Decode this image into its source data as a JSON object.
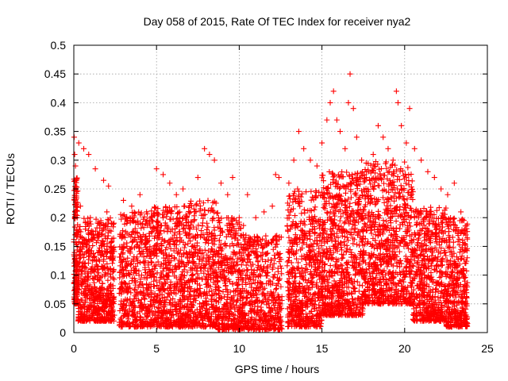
{
  "chart_data": {
    "type": "scatter",
    "title": "Day 058 of 2015, Rate Of TEC Index for receiver nya2",
    "xlabel": "GPS time / hours",
    "ylabel": "ROTI / TECUs",
    "xlim": [
      0,
      25
    ],
    "ylim": [
      0,
      0.5
    ],
    "x_ticks": [
      "0",
      "5",
      "10",
      "15",
      "20",
      "25"
    ],
    "y_ticks": [
      "0",
      "0.05",
      "0.1",
      "0.15",
      "0.2",
      "0.25",
      "0.3",
      "0.35",
      "0.4",
      "0.45",
      "0.5"
    ],
    "grid": true,
    "marker": "+",
    "color": "#ff0000",
    "series": [
      {
        "points": [
          [
            0.02,
            0.34
          ],
          [
            0.05,
            0.31
          ],
          [
            0.1,
            0.29
          ],
          [
            0.15,
            0.265
          ],
          [
            0.3,
            0.33
          ],
          [
            0.6,
            0.32
          ],
          [
            0.9,
            0.31
          ],
          [
            1.3,
            0.285
          ],
          [
            1.8,
            0.265
          ],
          [
            2.1,
            0.255
          ],
          [
            0.2,
            0.2
          ],
          [
            0.4,
            0.22
          ],
          [
            0.7,
            0.18
          ],
          [
            1.0,
            0.2
          ],
          [
            1.5,
            0.19
          ],
          [
            2.0,
            0.21
          ],
          [
            2.3,
            0.19
          ],
          [
            0.3,
            0.1
          ],
          [
            0.8,
            0.08
          ],
          [
            1.4,
            0.06
          ],
          [
            1.9,
            0.05
          ],
          [
            2.35,
            0.04
          ],
          [
            3.0,
            0.23
          ],
          [
            3.5,
            0.22
          ],
          [
            4.0,
            0.24
          ],
          [
            4.4,
            0.21
          ],
          [
            5.0,
            0.285
          ],
          [
            5.4,
            0.275
          ],
          [
            5.8,
            0.26
          ],
          [
            6.2,
            0.24
          ],
          [
            6.6,
            0.25
          ],
          [
            7.0,
            0.22
          ],
          [
            7.5,
            0.27
          ],
          [
            7.9,
            0.32
          ],
          [
            8.2,
            0.31
          ],
          [
            8.5,
            0.3
          ],
          [
            8.9,
            0.26
          ],
          [
            9.3,
            0.24
          ],
          [
            9.6,
            0.27
          ],
          [
            10.0,
            0.2
          ],
          [
            10.5,
            0.24
          ],
          [
            11.0,
            0.2
          ],
          [
            11.5,
            0.21
          ],
          [
            12.0,
            0.22
          ],
          [
            12.2,
            0.275
          ],
          [
            12.4,
            0.27
          ],
          [
            3.2,
            0.12
          ],
          [
            4.1,
            0.1
          ],
          [
            5.3,
            0.14
          ],
          [
            6.3,
            0.12
          ],
          [
            7.2,
            0.1
          ],
          [
            8.4,
            0.12
          ],
          [
            9.1,
            0.09
          ],
          [
            10.4,
            0.1
          ],
          [
            11.3,
            0.08
          ],
          [
            12.1,
            0.06
          ],
          [
            3.6,
            0.03
          ],
          [
            5.6,
            0.02
          ],
          [
            7.7,
            0.03
          ],
          [
            9.8,
            0.015
          ],
          [
            11.8,
            0.02
          ],
          [
            13.0,
            0.26
          ],
          [
            13.3,
            0.3
          ],
          [
            13.6,
            0.35
          ],
          [
            13.9,
            0.32
          ],
          [
            14.3,
            0.3
          ],
          [
            14.7,
            0.29
          ],
          [
            15.0,
            0.33
          ],
          [
            15.3,
            0.37
          ],
          [
            15.5,
            0.4
          ],
          [
            15.7,
            0.42
          ],
          [
            15.9,
            0.37
          ],
          [
            16.1,
            0.35
          ],
          [
            16.4,
            0.32
          ],
          [
            16.6,
            0.4
          ],
          [
            16.7,
            0.45
          ],
          [
            16.9,
            0.39
          ],
          [
            17.1,
            0.34
          ],
          [
            17.4,
            0.3
          ],
          [
            17.8,
            0.28
          ],
          [
            18.1,
            0.31
          ],
          [
            18.4,
            0.36
          ],
          [
            18.7,
            0.34
          ],
          [
            19.0,
            0.32
          ],
          [
            19.3,
            0.3
          ],
          [
            19.5,
            0.42
          ],
          [
            19.6,
            0.4
          ],
          [
            19.8,
            0.36
          ],
          [
            20.1,
            0.33
          ],
          [
            20.3,
            0.39
          ],
          [
            20.6,
            0.32
          ],
          [
            21.0,
            0.3
          ],
          [
            21.4,
            0.28
          ],
          [
            21.8,
            0.27
          ],
          [
            22.2,
            0.25
          ],
          [
            22.6,
            0.24
          ],
          [
            23.0,
            0.26
          ],
          [
            23.4,
            0.21
          ],
          [
            23.7,
            0.17
          ],
          [
            13.2,
            0.15
          ],
          [
            14.5,
            0.13
          ],
          [
            15.6,
            0.16
          ],
          [
            16.8,
            0.18
          ],
          [
            18.0,
            0.15
          ],
          [
            19.2,
            0.17
          ],
          [
            20.4,
            0.14
          ],
          [
            21.6,
            0.12
          ],
          [
            22.8,
            0.1
          ],
          [
            23.6,
            0.08
          ],
          [
            13.5,
            0.04
          ],
          [
            15.2,
            0.05
          ],
          [
            17.2,
            0.06
          ],
          [
            19.4,
            0.07
          ],
          [
            21.2,
            0.05
          ],
          [
            23.2,
            0.03
          ]
        ],
        "dense_bands": [
          {
            "x0": 0.0,
            "x1": 0.25,
            "ymin": 0.05,
            "ymax": 0.27,
            "n": 160
          },
          {
            "x0": 0.25,
            "x1": 2.45,
            "ymin": 0.02,
            "ymax": 0.2,
            "n": 650
          },
          {
            "x0": 2.75,
            "x1": 4.5,
            "ymin": 0.01,
            "ymax": 0.21,
            "n": 420
          },
          {
            "x0": 4.5,
            "x1": 6.5,
            "ymin": 0.01,
            "ymax": 0.22,
            "n": 520
          },
          {
            "x0": 6.5,
            "x1": 8.7,
            "ymin": 0.01,
            "ymax": 0.23,
            "n": 560
          },
          {
            "x0": 8.7,
            "x1": 10.3,
            "ymin": 0.005,
            "ymax": 0.2,
            "n": 420
          },
          {
            "x0": 10.3,
            "x1": 12.6,
            "ymin": 0.005,
            "ymax": 0.17,
            "n": 480
          },
          {
            "x0": 12.9,
            "x1": 15.0,
            "ymin": 0.01,
            "ymax": 0.25,
            "n": 600
          },
          {
            "x0": 15.0,
            "x1": 17.5,
            "ymin": 0.03,
            "ymax": 0.28,
            "n": 750
          },
          {
            "x0": 17.5,
            "x1": 20.5,
            "ymin": 0.05,
            "ymax": 0.3,
            "n": 820
          },
          {
            "x0": 20.5,
            "x1": 22.5,
            "ymin": 0.02,
            "ymax": 0.22,
            "n": 560
          },
          {
            "x0": 22.5,
            "x1": 23.8,
            "ymin": 0.01,
            "ymax": 0.2,
            "n": 380
          }
        ]
      }
    ]
  }
}
